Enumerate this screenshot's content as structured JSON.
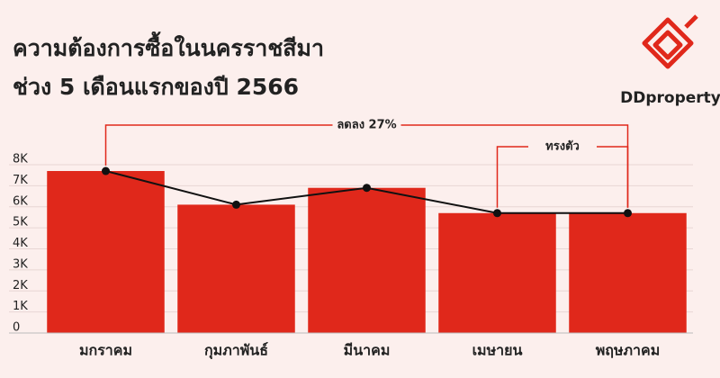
{
  "chart_data": {
    "type": "bar",
    "title": "ความต้องการซื้อในนครราชสีมา",
    "subtitle": "ช่วง 5 เดือนแรกของปี 2566",
    "categories": [
      "มกราคม",
      "กุมภาพันธ์",
      "มีนาคม",
      "เมษายน",
      "พฤษภาคม"
    ],
    "values": [
      7700,
      6100,
      6900,
      5700,
      5700
    ],
    "color": "#e0281b",
    "line_color": "#111111",
    "ylim": [
      0,
      8000
    ],
    "yticks": [
      0,
      {
        "value": 1000,
        "label": "1K"
      },
      {
        "value": 2000,
        "label": "2K"
      },
      {
        "value": 3000,
        "label": "3K"
      },
      {
        "value": 4000,
        "label": "4K"
      },
      {
        "value": 5000,
        "label": "5K"
      },
      {
        "value": 6000,
        "label": "6K"
      },
      {
        "value": 7000,
        "label": "7K"
      },
      {
        "value": 8000,
        "label": "8K"
      }
    ],
    "grid": true,
    "annotations": [
      "ลดลง 27%",
      "ทรงตัว"
    ]
  },
  "logo_text": "DDproperty"
}
